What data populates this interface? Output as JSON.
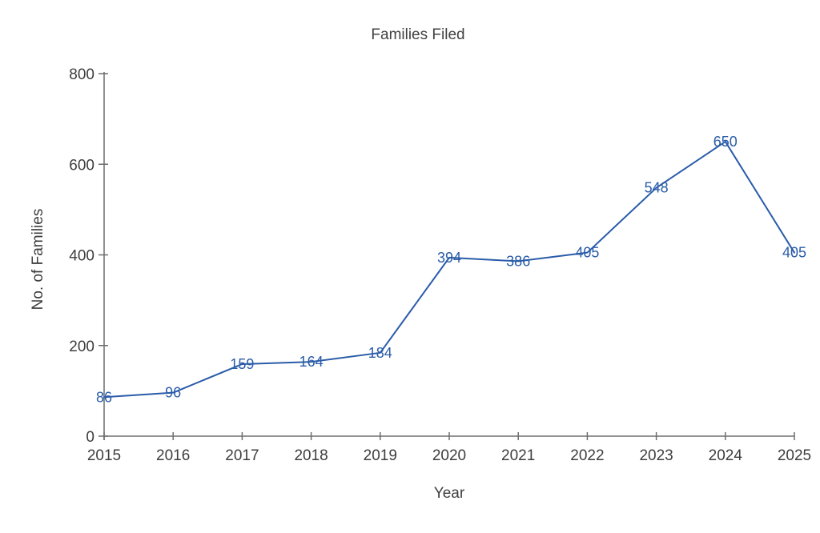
{
  "legend": {
    "series_label": "Families Filed"
  },
  "chart_data": {
    "type": "line",
    "x": [
      2015,
      2016,
      2017,
      2018,
      2019,
      2020,
      2021,
      2022,
      2023,
      2024,
      2025
    ],
    "series": [
      {
        "name": "Families Filed",
        "values": [
          86,
          96,
          159,
          164,
          184,
          394,
          386,
          405,
          548,
          650,
          405
        ]
      }
    ],
    "data_labels_shown": true,
    "xlabel": "Year",
    "ylabel": "No. of Families",
    "ylim": [
      0,
      800
    ],
    "yticks": [
      0,
      200,
      400,
      600,
      800
    ],
    "grid": false,
    "legend_position": "top-center",
    "colors": {
      "line": "#2a5ca9",
      "data_label": "#2a5ca9",
      "axis": "#6e6e6e",
      "tick_text": "#3e3e3e"
    }
  }
}
